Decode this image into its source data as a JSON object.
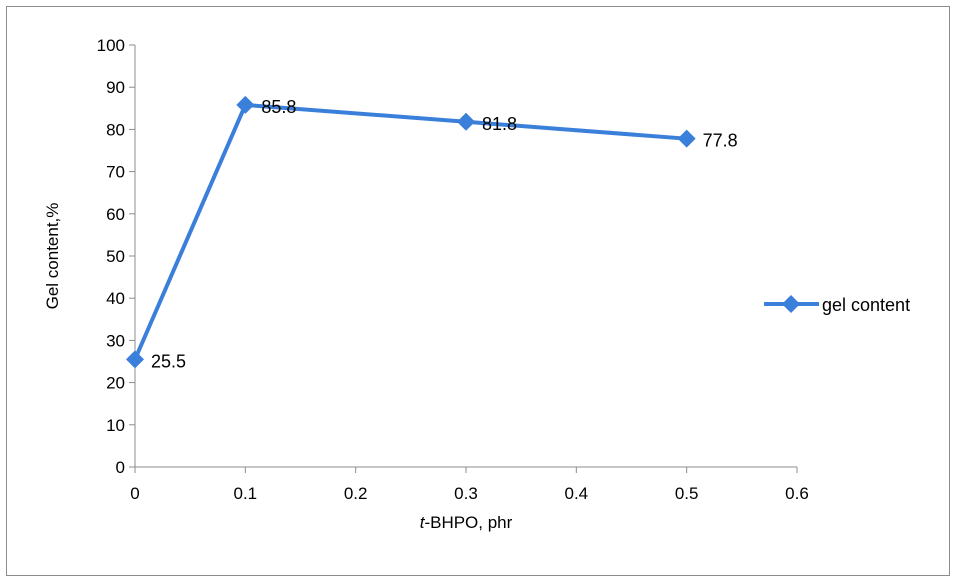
{
  "chart_data": {
    "type": "line",
    "title": "",
    "xlabel_italic": "t",
    "xlabel_rest": "-BHPO, phr",
    "ylabel": "Gel content,%",
    "xlim": [
      0,
      0.6
    ],
    "ylim": [
      0,
      100
    ],
    "x_ticks": [
      0,
      0.1,
      0.2,
      0.3,
      0.4,
      0.5,
      0.6
    ],
    "x_tick_labels": [
      "0",
      "0.1",
      "0.2",
      "0.3",
      "0.4",
      "0.5",
      "0.6"
    ],
    "y_ticks": [
      0,
      10,
      20,
      30,
      40,
      50,
      60,
      70,
      80,
      90,
      100
    ],
    "y_tick_labels": [
      "0",
      "10",
      "20",
      "30",
      "40",
      "50",
      "60",
      "70",
      "80",
      "90",
      "100"
    ],
    "grid": false,
    "legend_position": "right",
    "series": [
      {
        "name": "gel content",
        "color": "#3a7fd9",
        "marker": "diamond",
        "x": [
          0,
          0.1,
          0.3,
          0.5
        ],
        "y": [
          25.5,
          85.8,
          81.8,
          77.8
        ],
        "data_labels": [
          "25.5",
          "85.8",
          "81.8",
          "77.8"
        ]
      }
    ]
  }
}
